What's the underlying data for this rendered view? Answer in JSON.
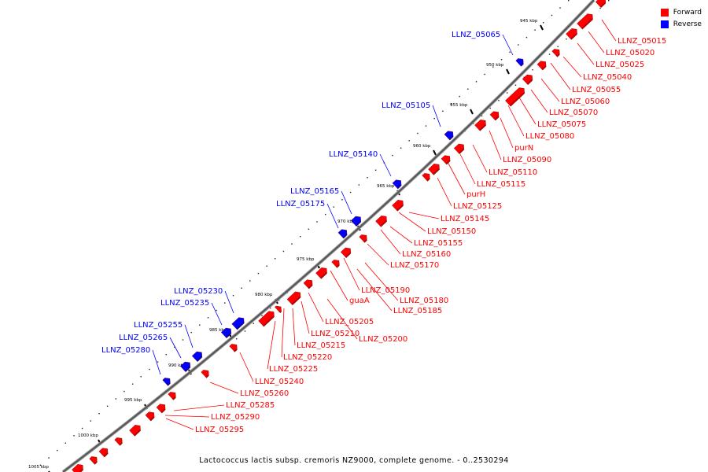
{
  "legend": {
    "forward_label": "Forward",
    "reverse_label": "Reverse",
    "forward_color": "#ff0000",
    "reverse_color": "#0000ff"
  },
  "caption": "Lactococcus lactis subsp. cremoris NZ9000, complete genome. - 0..2530294",
  "ticks": [
    "945 kbp",
    "950 kbp",
    "955 kbp",
    "960 kbp",
    "965 kbp",
    "970 kbp",
    "975 kbp",
    "980 kbp",
    "985 kbp",
    "990 kbp",
    "995 kbp",
    "1000 kbp",
    "1005 kbp"
  ],
  "forward_labels": [
    "LLNZ_05015",
    "LLNZ_05020",
    "LLNZ_05025",
    "LLNZ_05040",
    "LLNZ_05055",
    "LLNZ_05060",
    "LLNZ_05070",
    "LLNZ_05075",
    "LLNZ_05080",
    "purN",
    "LLNZ_05090",
    "LLNZ_05110",
    "LLNZ_05115",
    "purH",
    "LLNZ_05125",
    "LLNZ_05145",
    "LLNZ_05150",
    "LLNZ_05155",
    "LLNZ_05160",
    "LLNZ_05170",
    "LLNZ_05190",
    "LLNZ_05180",
    "LLNZ_05185",
    "guaA",
    "LLNZ_05205",
    "LLNZ_05200",
    "LLNZ_05210",
    "LLNZ_05215",
    "LLNZ_05220",
    "LLNZ_05225",
    "LLNZ_05240",
    "LLNZ_05260",
    "LLNZ_05285",
    "LLNZ_05290",
    "LLNZ_05295"
  ],
  "reverse_labels": [
    "LLNZ_05065",
    "LLNZ_05105",
    "LLNZ_05140",
    "LLNZ_05165",
    "LLNZ_05175",
    "LLNZ_05230",
    "LLNZ_05235",
    "LLNZ_05255",
    "LLNZ_05265",
    "LLNZ_05280"
  ]
}
